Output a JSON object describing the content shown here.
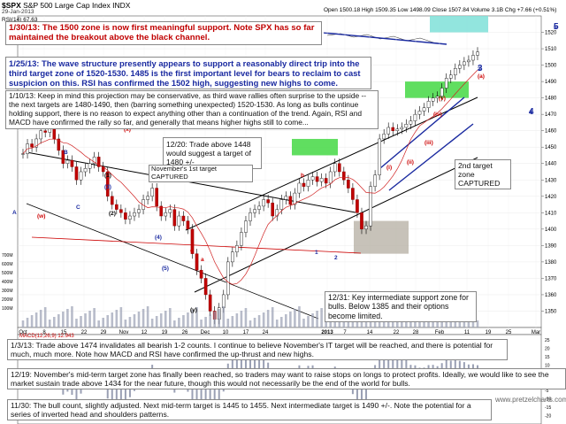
{
  "header": {
    "symbol": "$SPX",
    "name": "S&P 500 Large Cap Index  INDX",
    "date": "29-Jan-2013",
    "rsi_label": "RSI(14) 67.63",
    "quote": "Open 1500.18  High 1509.35  Low 1498.09  Close 1507.84  Volume 3.1B  Chg +7.66 (+0.51%)",
    "macd_label": "MACD(12,26,9) 12.943"
  },
  "annotations": {
    "n1": "1/30/13:  The 1500 zone is now first meaningful support.  Note SPX has so far maintained the breakout above the black channel.",
    "n2": "1/25/13: The wave structure presently appears to support a reasonably direct trip into the third target zone of 1520-1530.  1485 is the first important level for bears to reclaim to cast suspicion on this.  RSI has confirmed the 1502 high, suggesting new highs to come.",
    "n3": "1/10/13:  Keep in mind this projection may be conservative, as third wave rallies often surprise to the upside -- the next targets are 1480-1490, then (barring something unexpected) 1520-1530.  As long as bulls continue holding support, there is no reason to expect anything other than a continuation of the trend.  Again, RSI and MACD have confirmed the rally so far, and generally that means higher highs still to come...",
    "n4": "12/20: Trade above 1448 would suggest a target of 1480 +/-",
    "n5": "November's 1st target CAPTURED",
    "n6": "2nd target zone CAPTURED",
    "n7": "12/31:  Key intermediate support zone for bulls.  Below 1385 and their options become limited.",
    "n8": "1/3/13:  Trade above 1474 invalidates all bearish 1-2 counts.  I continue to believe November's IT target will be reached, and there is potential for much, much more.  Note how MACD and RSI have confirmed the up-thrust and new highs.",
    "n9": "12/19:  November's mid-term target zone has finally been reached, so traders may want to raise stops on longs to protect profits.  Ideally, we would like to see the market sustain trade above 1434 for the near future, though this would not necessarily be the end of the world for bulls.",
    "n10": "11/30:  The bull count, slightly adjusted.  Next mid-term target is 1445 to 1455.  Next intermediate target is 1490 +/-.  Note the potential for a series of inverted head and shoulders patterns.",
    "watermark": "www.pretzelcharts.com"
  },
  "chart_data": {
    "type": "candlestick",
    "title": "$SPX S&P 500 Large Cap Index  INDX",
    "ylim": [
      1340,
      1530
    ],
    "y_ticks": [
      1350,
      1360,
      1370,
      1380,
      1390,
      1400,
      1410,
      1420,
      1430,
      1440,
      1450,
      1460,
      1470,
      1480,
      1490,
      1500,
      1510,
      1520
    ],
    "x_ticks": [
      "Oct",
      "8",
      "15",
      "22",
      "29",
      "Nov",
      "12",
      "19",
      "26",
      "Dec",
      "10",
      "17",
      "24",
      "2013",
      "7",
      "14",
      "22",
      "28",
      "Feb",
      "11",
      "19",
      "25",
      "Mar"
    ],
    "series": [
      {
        "values": [
          1446,
          1452,
          1450,
          1455,
          1460,
          1459,
          1462,
          1455,
          1448,
          1440,
          1442,
          1438,
          1430,
          1435,
          1437,
          1440,
          1444,
          1438,
          1435,
          1420,
          1415,
          1412,
          1410,
          1406,
          1408,
          1410,
          1412,
          1418,
          1420,
          1425,
          1414,
          1408,
          1410,
          1412,
          1402,
          1408,
          1405,
          1400,
          1385,
          1375,
          1370,
          1360,
          1350,
          1345,
          1352,
          1360,
          1380,
          1386,
          1390,
          1398,
          1405,
          1410,
          1412,
          1414,
          1418,
          1416,
          1408,
          1412,
          1418,
          1420,
          1415,
          1422,
          1428,
          1426,
          1430,
          1432,
          1429,
          1431,
          1428,
          1435,
          1440,
          1435,
          1430,
          1425,
          1418,
          1410,
          1400,
          1402,
          1426,
          1433,
          1455,
          1458,
          1462,
          1460,
          1461,
          1462,
          1464,
          1466,
          1470,
          1472,
          1474,
          1478,
          1480,
          1481,
          1486,
          1492,
          1494,
          1498,
          1500,
          1502,
          1503,
          1506,
          1508
        ]
      }
    ],
    "levels": [
      1500,
      1485,
      1520,
      1530,
      1480,
      1490,
      1448,
      1434,
      1445,
      1455,
      1385,
      1474
    ],
    "target_zones": [
      [
        1520,
        1530
      ],
      [
        1480,
        1490
      ],
      [
        1445,
        1455
      ]
    ],
    "support_zone": [
      1385,
      1405
    ],
    "wave_labels": [
      "(x)",
      "(w)",
      "A",
      "B",
      "C",
      "c",
      "a",
      "b",
      "(y)",
      "(1)",
      "(2)",
      "(3)",
      "(4)",
      "(5)",
      "1",
      "2",
      "3",
      "4",
      "5",
      "(i)",
      "(ii)",
      "(iii)",
      "(iv)",
      "(v)",
      "(a)"
    ],
    "right_labels": [
      "5",
      "3",
      "4"
    ],
    "volume_ticks": [
      "700M",
      "600M",
      "500M",
      "400M",
      "300M",
      "200M",
      "100M"
    ],
    "macd_ticks": [
      "25",
      "20",
      "15",
      "10",
      "5",
      "0",
      "-5",
      "-10",
      "-15",
      "-20"
    ]
  }
}
